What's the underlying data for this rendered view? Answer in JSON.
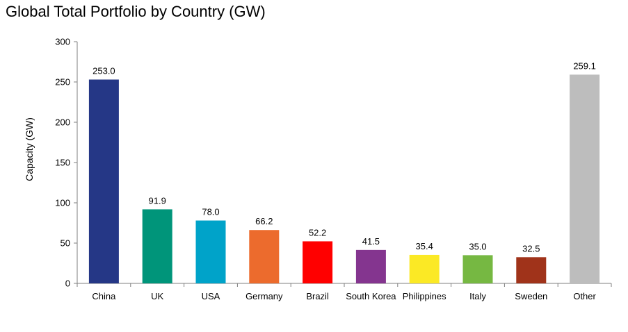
{
  "chart_data": {
    "type": "bar",
    "title": "Global Total Portfolio by Country (GW)",
    "xlabel": "",
    "ylabel": "Capacity (GW)",
    "ylim": [
      0,
      300
    ],
    "yticks": [
      0,
      50,
      100,
      150,
      200,
      250,
      300
    ],
    "categories": [
      "China",
      "UK",
      "USA",
      "Germany",
      "Brazil",
      "South Korea",
      "Philippines",
      "Italy",
      "Sweden",
      "Other"
    ],
    "values": [
      253.0,
      91.9,
      78.0,
      66.2,
      52.2,
      41.5,
      35.4,
      35.0,
      32.5,
      259.1
    ],
    "value_labels": [
      "253.0",
      "91.9",
      "78.0",
      "66.2",
      "52.2",
      "41.5",
      "35.4",
      "35.0",
      "32.5",
      "259.1"
    ],
    "colors": [
      "#253786",
      "#00957A",
      "#00A3C9",
      "#EC6B2D",
      "#FF0000",
      "#84358F",
      "#FBE925",
      "#76B842",
      "#A0331A",
      "#BDBDBD"
    ],
    "grid": false,
    "legend": "none"
  }
}
